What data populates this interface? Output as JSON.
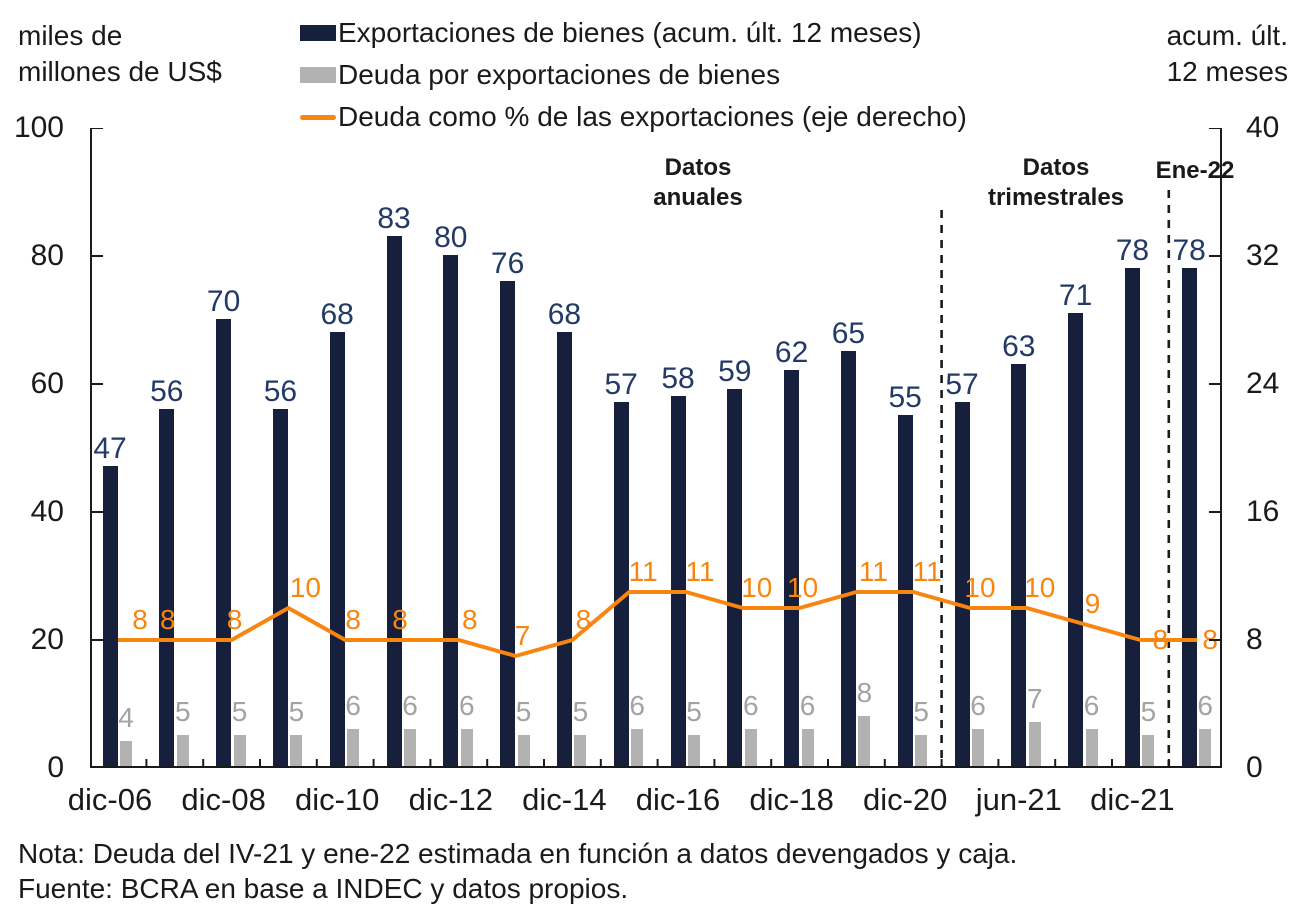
{
  "axis_titles": {
    "left": "miles de\nmillones de US$",
    "right": "acum. últ.\n12 meses"
  },
  "legend": {
    "items": [
      {
        "label": "Exportaciones de bienes (acum. últ. 12 meses)",
        "swatch": "square",
        "color": "#161F3B"
      },
      {
        "label": "Deuda por exportaciones de bienes",
        "swatch": "square",
        "color": "#B2B2B2"
      },
      {
        "label": "Deuda como % de las exportaciones (eje derecho)",
        "swatch": "line",
        "color": "#F8850F"
      }
    ]
  },
  "annotations": {
    "annual": "Datos\nanuales",
    "quarterly": "Datos\ntrimestrales",
    "ene22": "Ene-22"
  },
  "chart_data": {
    "type": "bar+line",
    "groups": 20,
    "x_ticks": [
      {
        "label": "dic-06",
        "group": 1
      },
      {
        "label": "dic-08",
        "group": 3
      },
      {
        "label": "dic-10",
        "group": 5
      },
      {
        "label": "dic-12",
        "group": 7
      },
      {
        "label": "dic-14",
        "group": 9
      },
      {
        "label": "dic-16",
        "group": 11
      },
      {
        "label": "dic-18",
        "group": 13
      },
      {
        "label": "dic-20",
        "group": 15
      },
      {
        "label": "jun-21",
        "group": 17
      },
      {
        "label": "dic-21",
        "group": 19
      }
    ],
    "series": [
      {
        "name": "Exportaciones de bienes (acum. últ. 12 meses)",
        "type": "bar",
        "axis": "left",
        "color": "#161F3B",
        "label_color": "#233A67",
        "values": [
          47,
          56,
          70,
          56,
          68,
          83,
          80,
          76,
          68,
          57,
          58,
          59,
          62,
          65,
          55,
          57,
          63,
          71,
          78,
          78
        ]
      },
      {
        "name": "Deuda por exportaciones de bienes",
        "type": "bar",
        "axis": "left",
        "color": "#B2B2B2",
        "label_color": "#A3A3A3",
        "values": [
          4,
          5,
          5,
          5,
          6,
          6,
          6,
          5,
          5,
          6,
          5,
          6,
          6,
          8,
          5,
          6,
          7,
          6,
          5,
          6
        ]
      },
      {
        "name": "Deuda como % de las exportaciones (eje derecho)",
        "type": "line",
        "axis": "right",
        "color": "#F8850F",
        "label_color": "#F8850F",
        "values": [
          8,
          8,
          8,
          10,
          8,
          8,
          8,
          7,
          8,
          11,
          11,
          10,
          10,
          11,
          11,
          10,
          10,
          9,
          8,
          8
        ]
      }
    ],
    "left_axis": {
      "min": 0,
      "max": 100,
      "ticks": [
        0,
        20,
        40,
        60,
        80,
        100
      ]
    },
    "right_axis": {
      "min": 0,
      "max": 40,
      "ticks": [
        0,
        8,
        16,
        24,
        32,
        40
      ]
    },
    "separators_after_groups": [
      15,
      19
    ],
    "grid": false,
    "legend_position": "top",
    "data_labels": true
  },
  "notes": {
    "nota": "Nota: Deuda del IV-21 y ene-22 estimada en función a datos devengados y caja.",
    "fuente": "Fuente: BCRA en base a INDEC y datos propios."
  }
}
